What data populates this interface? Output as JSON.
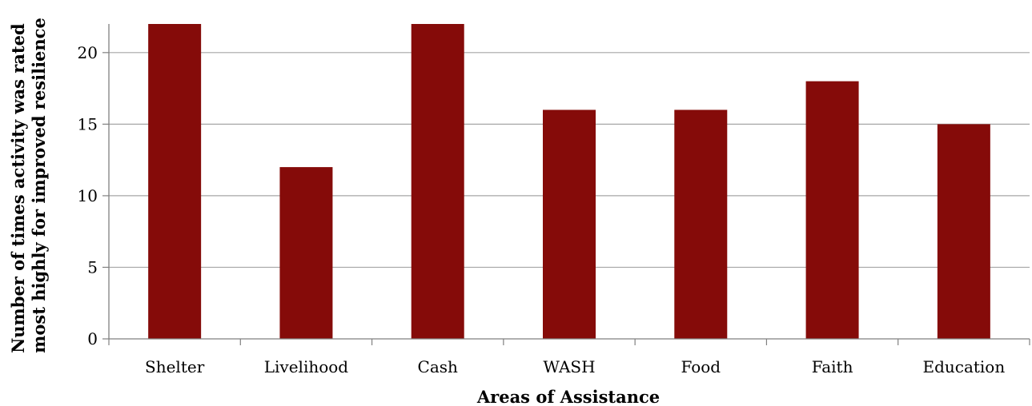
{
  "chart_data": {
    "type": "bar",
    "categories": [
      "Shelter",
      "Livelihood",
      "Cash",
      "WASH",
      "Food",
      "Faith",
      "Education"
    ],
    "values": [
      22,
      12,
      22,
      16,
      16,
      18,
      15
    ],
    "title": "",
    "xlabel": "Areas of Assistance",
    "ylabel_lines": [
      "Number of times activity was rated",
      "most highly for improved resilience"
    ],
    "ylim": [
      0,
      22
    ],
    "yticks": [
      0,
      5,
      10,
      15,
      20
    ],
    "grid": true,
    "legend": "none",
    "bar_color": "#850b09",
    "grid_color": "#a6a6a6",
    "axis_color": "#808080"
  }
}
